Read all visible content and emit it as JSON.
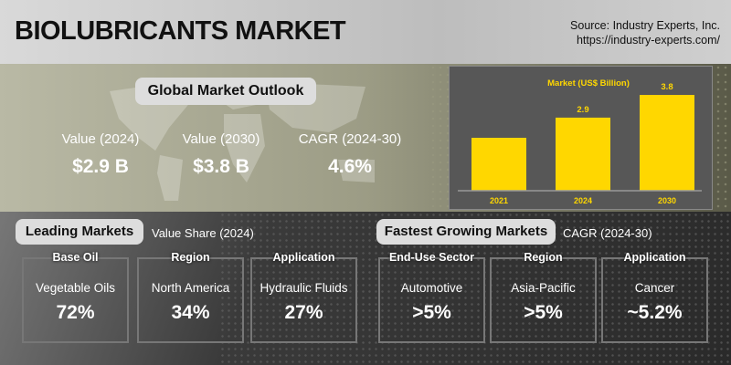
{
  "header": {
    "title": "BIOLUBRICANTS MARKET",
    "source_line1": "Source: Industry Experts, Inc.",
    "source_line2": "https://industry-experts.com/"
  },
  "outlook": {
    "title": "Global Market Outlook",
    "kpis": [
      {
        "label": "Value (2024)",
        "value": "$2.9 B"
      },
      {
        "label": "Value (2030)",
        "value": "$3.8 B"
      },
      {
        "label": "CAGR (2024-30)",
        "value": "4.6%"
      }
    ]
  },
  "chart_data": {
    "type": "bar",
    "title": "Market (US$ Billion)",
    "categories": [
      "2021",
      "2024",
      "2030"
    ],
    "values": [
      2.1,
      2.9,
      3.8
    ],
    "data_labels": [
      "",
      "2.9",
      "3.8"
    ],
    "ylim": [
      0,
      4.2
    ],
    "bar_color": "#ffd700"
  },
  "leading": {
    "title": "Leading Markets",
    "subtitle": "Value Share (2024)",
    "boxes": [
      {
        "header": "Base Oil",
        "name": "Vegetable Oils",
        "value": "72%"
      },
      {
        "header": "Region",
        "name": "North America",
        "value": "34%"
      },
      {
        "header": "Application",
        "name": "Hydraulic Fluids",
        "value": "27%"
      }
    ]
  },
  "fastest": {
    "title": "Fastest Growing Markets",
    "subtitle": "CAGR (2024-30)",
    "boxes": [
      {
        "header": "End-Use Sector",
        "name": "Automotive",
        "value": ">5%"
      },
      {
        "header": "Region",
        "name": "Asia-Pacific",
        "value": ">5%"
      },
      {
        "header": "Application",
        "name": "Cancer",
        "value": "~5.2%"
      }
    ]
  }
}
